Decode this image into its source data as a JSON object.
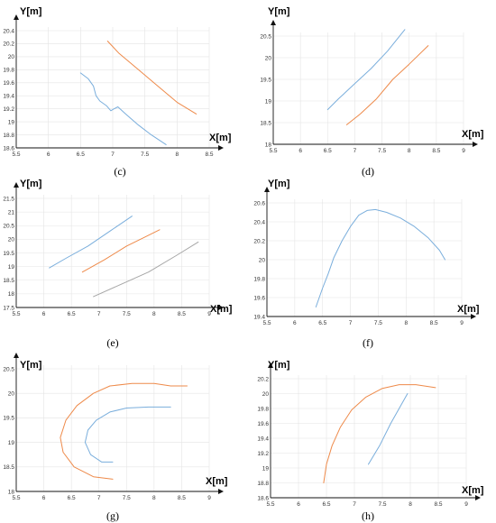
{
  "colors": {
    "blue": "#7aaedc",
    "orange": "#ee8a4a",
    "gray": "#a6a6a6",
    "grid": "#e4e4e4",
    "axis": "#111111"
  },
  "chart_data": [
    {
      "label": "(c)",
      "type": "line",
      "xlabel": "X[m]",
      "ylabel": "Y[m]",
      "xlim": [
        5.5,
        8.5
      ],
      "ylim": [
        18.6,
        20.4
      ],
      "xticks": [
        "5.5",
        "6",
        "6.5",
        "7",
        "7.5",
        "8",
        "8.5"
      ],
      "yticks": [
        "18.6",
        "18.8",
        "19",
        "19.2",
        "19.4",
        "19.6",
        "19.8",
        "20",
        "20.2",
        "20.4"
      ],
      "grid": true,
      "series": [
        {
          "color": "blue",
          "points": [
            [
              6.5,
              19.75
            ],
            [
              6.62,
              19.66
            ],
            [
              6.7,
              19.55
            ],
            [
              6.74,
              19.4
            ],
            [
              6.8,
              19.32
            ],
            [
              6.9,
              19.25
            ],
            [
              6.97,
              19.17
            ],
            [
              7.02,
              19.2
            ],
            [
              7.08,
              19.23
            ],
            [
              7.2,
              19.12
            ],
            [
              7.4,
              18.95
            ],
            [
              7.6,
              18.8
            ],
            [
              7.83,
              18.65
            ]
          ]
        },
        {
          "color": "orange",
          "points": [
            [
              6.92,
              20.24
            ],
            [
              7.1,
              20.05
            ],
            [
              7.4,
              19.8
            ],
            [
              7.7,
              19.55
            ],
            [
              8.0,
              19.3
            ],
            [
              8.3,
              19.12
            ]
          ]
        }
      ]
    },
    {
      "label": "(d)",
      "type": "line",
      "xlabel": "X[m]",
      "ylabel": "Y[m]",
      "xlim": [
        5.5,
        9
      ],
      "ylim": [
        18,
        20.5
      ],
      "xticks": [
        "5.5",
        "6",
        "6.5",
        "7",
        "7.5",
        "8",
        "8.5",
        "9"
      ],
      "yticks": [
        "18",
        "18.5",
        "19",
        "19.5",
        "20",
        "20.5"
      ],
      "grid": true,
      "series": [
        {
          "color": "blue",
          "points": [
            [
              6.5,
              18.8
            ],
            [
              6.7,
              19.05
            ],
            [
              7.0,
              19.4
            ],
            [
              7.3,
              19.75
            ],
            [
              7.6,
              20.15
            ],
            [
              7.92,
              20.65
            ]
          ]
        },
        {
          "color": "orange",
          "points": [
            [
              6.85,
              18.45
            ],
            [
              7.1,
              18.7
            ],
            [
              7.4,
              19.05
            ],
            [
              7.7,
              19.5
            ],
            [
              8.0,
              19.85
            ],
            [
              8.35,
              20.28
            ]
          ]
        }
      ]
    },
    {
      "label": "(e)",
      "type": "line",
      "xlabel": "X[m]",
      "ylabel": "Y[m]",
      "xlim": [
        5.5,
        9
      ],
      "ylim": [
        17.5,
        21.5
      ],
      "xticks": [
        "5.5",
        "6",
        "6.5",
        "7",
        "7.5",
        "8",
        "8.5",
        "9"
      ],
      "yticks": [
        "17.5",
        "18",
        "18.5",
        "19",
        "19.5",
        "20",
        "20.5",
        "21",
        "21.5"
      ],
      "grid": true,
      "series": [
        {
          "color": "blue",
          "points": [
            [
              6.1,
              18.95
            ],
            [
              6.4,
              19.3
            ],
            [
              6.8,
              19.75
            ],
            [
              7.2,
              20.3
            ],
            [
              7.6,
              20.85
            ]
          ]
        },
        {
          "color": "orange",
          "points": [
            [
              6.7,
              18.8
            ],
            [
              7.1,
              19.25
            ],
            [
              7.5,
              19.75
            ],
            [
              7.8,
              20.05
            ],
            [
              8.1,
              20.35
            ]
          ]
        },
        {
          "color": "gray",
          "points": [
            [
              6.9,
              17.9
            ],
            [
              7.4,
              18.35
            ],
            [
              7.9,
              18.8
            ],
            [
              8.4,
              19.4
            ],
            [
              8.8,
              19.9
            ]
          ]
        }
      ]
    },
    {
      "label": "(f)",
      "type": "line",
      "xlabel": "X[m]",
      "ylabel": "Y[m]",
      "xlim": [
        5.5,
        9
      ],
      "ylim": [
        19.4,
        20.6
      ],
      "xticks": [
        "5.5",
        "6",
        "6.5",
        "7",
        "7.5",
        "8",
        "8.5",
        "9"
      ],
      "yticks": [
        "19.4",
        "19.6",
        "19.8",
        "20",
        "20.2",
        "20.4",
        "20.6"
      ],
      "grid": true,
      "series": [
        {
          "color": "blue",
          "points": [
            [
              6.38,
              19.5
            ],
            [
              6.5,
              19.7
            ],
            [
              6.6,
              19.85
            ],
            [
              6.7,
              20.02
            ],
            [
              6.85,
              20.2
            ],
            [
              7.0,
              20.35
            ],
            [
              7.15,
              20.47
            ],
            [
              7.3,
              20.52
            ],
            [
              7.45,
              20.53
            ],
            [
              7.65,
              20.5
            ],
            [
              7.9,
              20.44
            ],
            [
              8.15,
              20.35
            ],
            [
              8.4,
              20.23
            ],
            [
              8.6,
              20.1
            ],
            [
              8.7,
              20.0
            ]
          ]
        }
      ]
    },
    {
      "label": "(g)",
      "type": "line",
      "xlabel": "X[m]",
      "ylabel": "Y[m]",
      "xlim": [
        5.5,
        9
      ],
      "ylim": [
        18,
        20.5
      ],
      "xticks": [
        "5.5",
        "6",
        "6.5",
        "7",
        "7.5",
        "8",
        "8.5",
        "9"
      ],
      "yticks": [
        "18",
        "18.5",
        "19",
        "19.5",
        "20",
        "20.5"
      ],
      "grid": true,
      "series": [
        {
          "color": "blue",
          "points": [
            [
              7.25,
              18.6
            ],
            [
              7.05,
              18.6
            ],
            [
              6.85,
              18.75
            ],
            [
              6.75,
              19.0
            ],
            [
              6.8,
              19.25
            ],
            [
              6.95,
              19.45
            ],
            [
              7.2,
              19.62
            ],
            [
              7.5,
              19.7
            ],
            [
              7.9,
              19.72
            ],
            [
              8.3,
              19.72
            ]
          ]
        },
        {
          "color": "orange",
          "points": [
            [
              7.25,
              18.25
            ],
            [
              6.9,
              18.3
            ],
            [
              6.55,
              18.5
            ],
            [
              6.35,
              18.8
            ],
            [
              6.3,
              19.1
            ],
            [
              6.4,
              19.45
            ],
            [
              6.6,
              19.75
            ],
            [
              6.9,
              20.0
            ],
            [
              7.2,
              20.15
            ],
            [
              7.6,
              20.2
            ],
            [
              8.0,
              20.2
            ],
            [
              8.3,
              20.15
            ],
            [
              8.6,
              20.15
            ]
          ]
        }
      ]
    },
    {
      "label": "(h)",
      "type": "line",
      "xlabel": "X[m]",
      "ylabel": "Y[m]",
      "xlim": [
        5.5,
        9
      ],
      "ylim": [
        18.6,
        20.2
      ],
      "xticks": [
        "5.5",
        "6",
        "6.5",
        "7",
        "7.5",
        "8",
        "8.5",
        "9"
      ],
      "yticks": [
        "18.6",
        "18.8",
        "19",
        "19.2",
        "19.4",
        "19.6",
        "19.8",
        "20",
        "20.2"
      ],
      "grid": true,
      "series": [
        {
          "color": "blue",
          "points": [
            [
              7.25,
              19.05
            ],
            [
              7.45,
              19.3
            ],
            [
              7.65,
              19.6
            ],
            [
              7.8,
              19.8
            ],
            [
              7.95,
              20.0
            ]
          ]
        },
        {
          "color": "orange",
          "points": [
            [
              6.45,
              18.8
            ],
            [
              6.5,
              19.05
            ],
            [
              6.6,
              19.3
            ],
            [
              6.75,
              19.55
            ],
            [
              6.95,
              19.78
            ],
            [
              7.2,
              19.95
            ],
            [
              7.5,
              20.07
            ],
            [
              7.8,
              20.12
            ],
            [
              8.1,
              20.12
            ],
            [
              8.45,
              20.08
            ]
          ]
        }
      ]
    }
  ]
}
